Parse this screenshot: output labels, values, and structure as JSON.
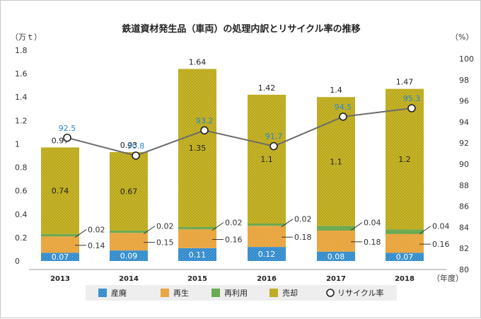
{
  "chart_data": {
    "type": "bar",
    "stacked": true,
    "title": "鉄道資材発生品（車両）の処理内訳とリサイクル率の推移",
    "ylabel_left": "（万ｔ）",
    "ylabel_right": "（%）",
    "xlabel": "（年度）",
    "categories": [
      "2013",
      "2014",
      "2015",
      "2016",
      "2017",
      "2018"
    ],
    "ylim_left": [
      0,
      1.8
    ],
    "yticks_left": [
      "0",
      "0.2",
      "0.4",
      "0.6",
      "0.8",
      "1",
      "1.2",
      "1.4",
      "1.6",
      "1.8"
    ],
    "ylim_right": [
      80,
      100
    ],
    "yticks_right": [
      "80",
      "82",
      "84",
      "86",
      "88",
      "90",
      "92",
      "94",
      "96",
      "98",
      "100"
    ],
    "series": [
      {
        "name": "産廃",
        "color": "#2a86c8",
        "values": [
          0.07,
          0.09,
          0.11,
          0.12,
          0.08,
          0.07
        ],
        "labels": [
          "0.07",
          "0.09",
          "0.11",
          "0.12",
          "0.08",
          "0.07"
        ]
      },
      {
        "name": "再生",
        "color": "#e8a23a",
        "values": [
          0.14,
          0.15,
          0.16,
          0.18,
          0.18,
          0.16
        ],
        "labels": [
          "0.14",
          "0.15",
          "0.16",
          "0.18",
          "0.18",
          "0.16"
        ]
      },
      {
        "name": "再利用",
        "color": "#6aa84f",
        "values": [
          0.02,
          0.02,
          0.02,
          0.02,
          0.04,
          0.04
        ],
        "labels": [
          "0.02",
          "0.02",
          "0.02",
          "0.02",
          "0.04",
          "0.04"
        ]
      },
      {
        "name": "売却",
        "color": "#c8b62a",
        "values": [
          0.74,
          0.67,
          1.35,
          1.1,
          1.1,
          1.2
        ],
        "labels": [
          "0.74",
          "0.67",
          "1.35",
          "1.1",
          "1.1",
          "1.2"
        ]
      }
    ],
    "totals": [
      "0.97",
      "0.93",
      "1.64",
      "1.42",
      "1.4",
      "1.47"
    ],
    "line": {
      "name": "リサイクル率",
      "values": [
        92.5,
        90.8,
        93.2,
        91.7,
        94.5,
        95.3
      ],
      "labels": [
        "92.5",
        "90.8",
        "93.2",
        "91.7",
        "94.5",
        "95.3"
      ],
      "color": "#6b6b6b",
      "label_color": "#2a86c8"
    },
    "legend": [
      "産廃",
      "再生",
      "再利用",
      "売却",
      "リサイクル率"
    ],
    "legend_position": "bottom"
  }
}
